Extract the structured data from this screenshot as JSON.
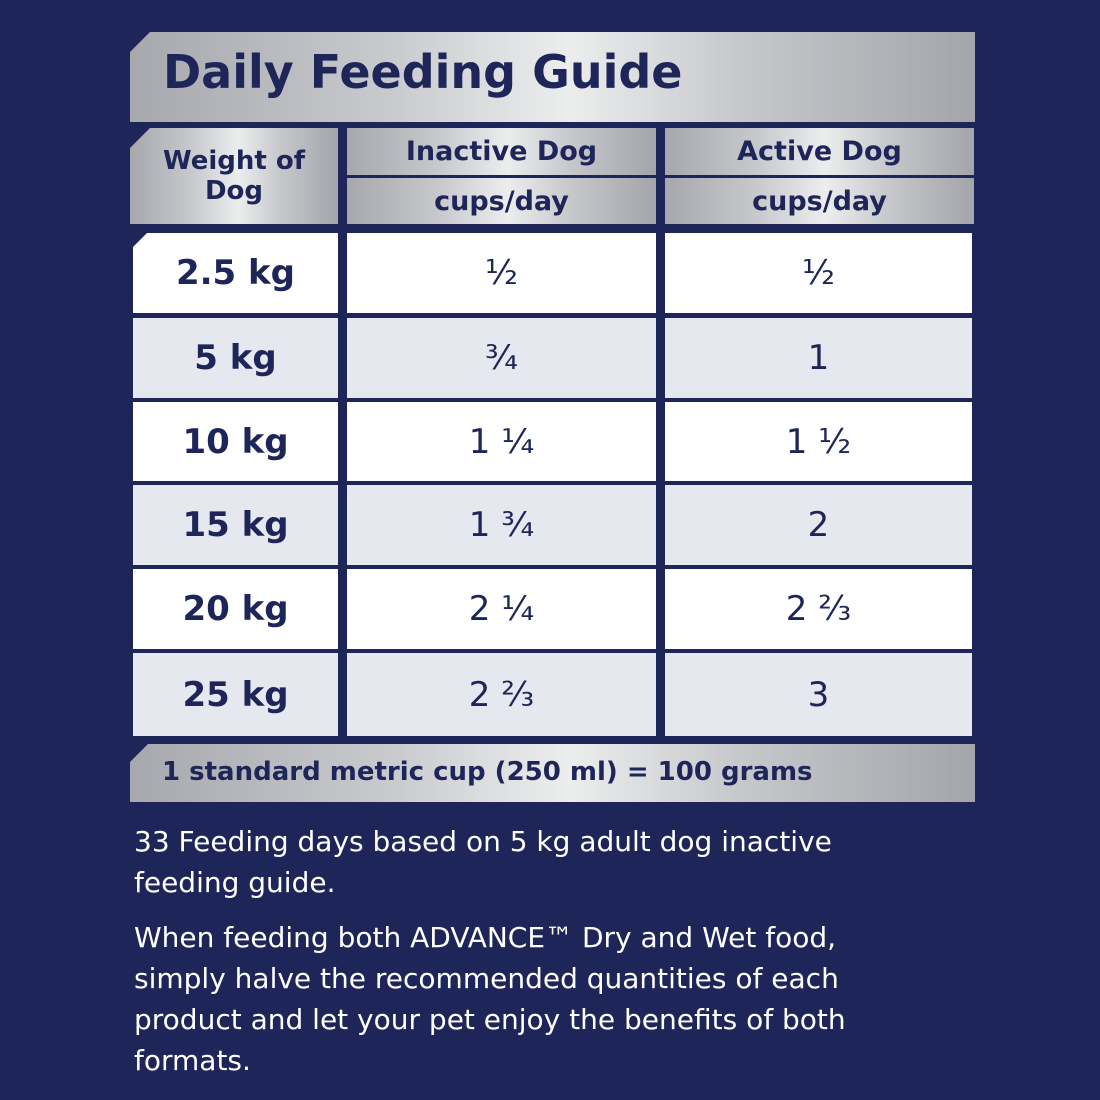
{
  "title": "Daily Feeding Guide",
  "header": {
    "weight_label": "Weight of Dog",
    "inactive_label": "Inactive Dog",
    "active_label": "Active Dog",
    "unit_inactive": "cups/day",
    "unit_active": "cups/day"
  },
  "rows": [
    {
      "weight": "2.5 kg",
      "inactive": "½",
      "active": "½"
    },
    {
      "weight": "5 kg",
      "inactive": "¾",
      "active": "1"
    },
    {
      "weight": "10 kg",
      "inactive": "1 ¼",
      "active": "1 ½"
    },
    {
      "weight": "15 kg",
      "inactive": "1 ¾",
      "active": "2"
    },
    {
      "weight": "20 kg",
      "inactive": "2 ¼",
      "active": "2 ⅔"
    },
    {
      "weight": "25 kg",
      "inactive": "2 ⅔",
      "active": "3"
    }
  ],
  "footer_note": "1 standard metric cup (250 ml) = 100 grams",
  "notes": [
    "33 Feeding days based on 5 kg adult dog inactive feeding guide.",
    "When feeding both ADVANCE™ Dry and Wet food, simply halve the recommended quantities of each product and let your pet enjoy the benefits of both formats."
  ],
  "colors": {
    "background": "#1d2559",
    "text_dark": "#1d2559",
    "row_white": "#ffffff",
    "row_light": "#e6e8f0",
    "header_silver": "#c7c9cd"
  }
}
